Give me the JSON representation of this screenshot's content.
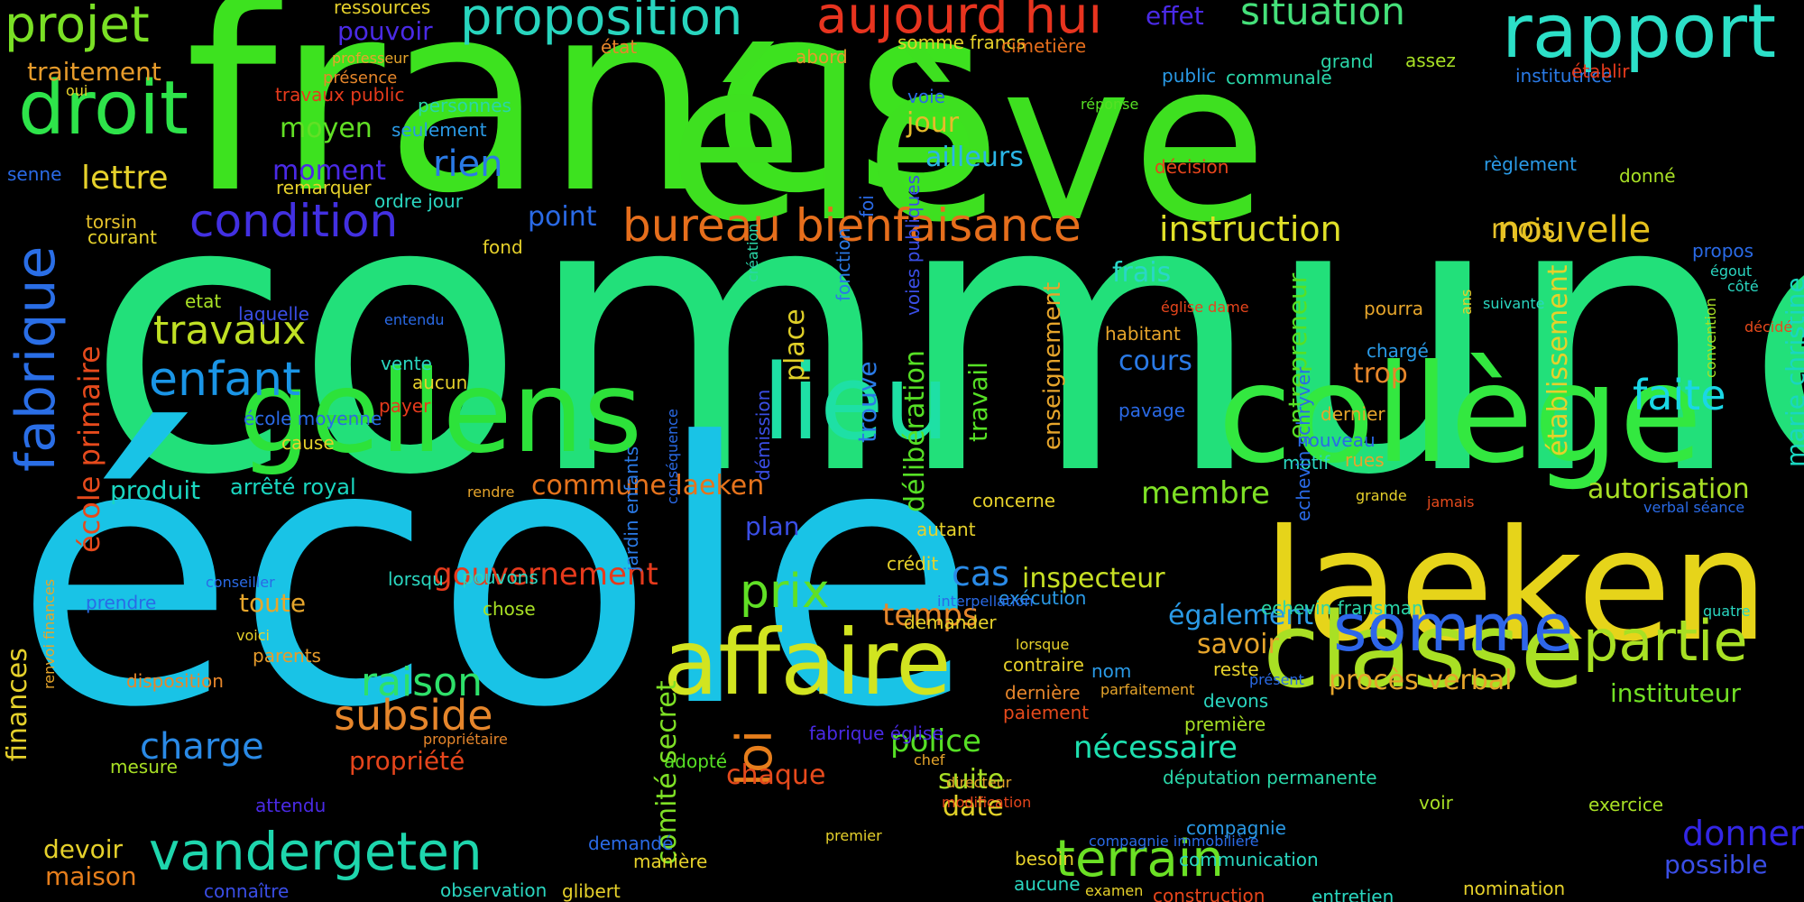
{
  "words": [
    {
      "text": "commune",
      "color": "#22e07a"
    },
    {
      "text": "école",
      "color": "#19c3e6"
    },
    {
      "text": "francs",
      "color": "#3de21f"
    },
    {
      "text": "élève",
      "color": "#3ee020"
    },
    {
      "text": "laeken",
      "color": "#e6d41a"
    },
    {
      "text": "collège",
      "color": "#33e840"
    },
    {
      "text": "gellens",
      "color": "#2de23a"
    },
    {
      "text": "lieu",
      "color": "#1ee0a5"
    },
    {
      "text": "classe",
      "color": "#a9e024"
    },
    {
      "text": "affaire",
      "color": "#d1e420"
    },
    {
      "text": "rapport",
      "color": "#2ce0c8"
    },
    {
      "text": "droit",
      "color": "#2ee44a"
    },
    {
      "text": "projet",
      "color": "#7ae025"
    },
    {
      "text": "proposition",
      "color": "#28d5be"
    },
    {
      "text": "aujourd hui",
      "color": "#e8341f"
    },
    {
      "text": "situation",
      "color": "#45e07a"
    },
    {
      "text": "fabrique",
      "color": "#2a6ee6"
    },
    {
      "text": "somme",
      "color": "#2e66ea"
    },
    {
      "text": "partie",
      "color": "#a8e024"
    },
    {
      "text": "vandergeten",
      "color": "#1ed6ad"
    },
    {
      "text": "terrain",
      "color": "#6be025"
    },
    {
      "text": "bureau bienfaisance",
      "color": "#e66e1c"
    },
    {
      "text": "condition",
      "color": "#4230e2"
    },
    {
      "text": "instruction",
      "color": "#e0e028"
    },
    {
      "text": "enfant",
      "color": "#1a95e6"
    },
    {
      "text": "travaux",
      "color": "#c0e024"
    },
    {
      "text": "prix",
      "color": "#60e025"
    },
    {
      "text": "faite",
      "color": "#1ad6e6"
    },
    {
      "text": "nouvelle",
      "color": "#e6c11c"
    },
    {
      "text": "loi",
      "color": "#e67e1c"
    },
    {
      "text": "raison",
      "color": "#2ee06a"
    },
    {
      "text": "subside",
      "color": "#e6862b"
    },
    {
      "text": "charge",
      "color": "#2a8ae6"
    },
    {
      "text": "membre",
      "color": "#7ee025"
    },
    {
      "text": "nécessaire",
      "color": "#1ee0b0"
    },
    {
      "text": "donner",
      "color": "#3326e6"
    },
    {
      "text": "lettre",
      "color": "#e6d12b"
    },
    {
      "text": "traitement",
      "color": "#e69b2b"
    },
    {
      "text": "moyen",
      "color": "#62e025"
    },
    {
      "text": "moment",
      "color": "#4a2ae6"
    },
    {
      "text": "rien",
      "color": "#2a7ae6"
    },
    {
      "text": "ailleurs",
      "color": "#2ab6e6"
    },
    {
      "text": "jour",
      "color": "#e6bb2b"
    },
    {
      "text": "pouvoir",
      "color": "#4a2ae6"
    },
    {
      "text": "effet",
      "color": "#4a2ae6"
    },
    {
      "text": "point",
      "color": "#2a6ae6"
    },
    {
      "text": "frais",
      "color": "#2ad6c8"
    },
    {
      "text": "cours",
      "color": "#2a7ae6"
    },
    {
      "text": "trop",
      "color": "#e6862b"
    },
    {
      "text": "mois",
      "color": "#e6c12b"
    },
    {
      "text": "procès verbal",
      "color": "#e6a52b"
    },
    {
      "text": "instituteur",
      "color": "#72e025"
    },
    {
      "text": "autorisation",
      "color": "#a8e025"
    },
    {
      "text": "gouvernement",
      "color": "#e63a1c"
    },
    {
      "text": "cas",
      "color": "#2a8ae6"
    },
    {
      "text": "inspecteur",
      "color": "#c8e024"
    },
    {
      "text": "temps",
      "color": "#e6862b"
    },
    {
      "text": "savoir",
      "color": "#e6a52b"
    },
    {
      "text": "également",
      "color": "#2a9ae6"
    },
    {
      "text": "police",
      "color": "#56e025"
    },
    {
      "text": "suite",
      "color": "#a8e025"
    },
    {
      "text": "date",
      "color": "#e0d028"
    },
    {
      "text": "propriété",
      "color": "#e6451c"
    },
    {
      "text": "chaque",
      "color": "#e64a1c"
    },
    {
      "text": "devoir",
      "color": "#e6d12b"
    },
    {
      "text": "maison",
      "color": "#e67e1c"
    },
    {
      "text": "possible",
      "color": "#3a4ee6"
    },
    {
      "text": "produit",
      "color": "#1ad6c0"
    },
    {
      "text": "plan",
      "color": "#3a4ee6"
    },
    {
      "text": "toute",
      "color": "#e6a52b"
    },
    {
      "text": "commune laeken",
      "color": "#e6731c"
    },
    {
      "text": "arrêté royal",
      "color": "#1ad6c0"
    },
    {
      "text": "établissement",
      "color": "#e6d12b"
    },
    {
      "text": "enseignement",
      "color": "#e6a52b"
    },
    {
      "text": "travail",
      "color": "#56e025"
    },
    {
      "text": "entrepreneur",
      "color": "#56e025"
    },
    {
      "text": "délibération",
      "color": "#56e025"
    },
    {
      "text": "trouve",
      "color": "#2a7ae6"
    },
    {
      "text": "place",
      "color": "#e0d028"
    },
    {
      "text": "comité secret",
      "color": "#7ee025"
    },
    {
      "text": "école primaire",
      "color": "#e64a1c"
    },
    {
      "text": "marie christine",
      "color": "#1ad6c0"
    },
    {
      "text": "finances",
      "color": "#e6d12b"
    },
    {
      "text": "ressources",
      "color": "#e6d12b"
    },
    {
      "text": "somme francs",
      "color": "#e6d12b"
    },
    {
      "text": "cimetière",
      "color": "#e66e1c"
    },
    {
      "text": "état",
      "color": "#e6862b"
    },
    {
      "text": "abord",
      "color": "#e69b2b"
    },
    {
      "text": "professeur",
      "color": "#e6a52b"
    },
    {
      "text": "oui",
      "color": "#e6d12b"
    },
    {
      "text": "présence",
      "color": "#e6862b"
    },
    {
      "text": "travaux public",
      "color": "#e63a1c"
    },
    {
      "text": "personnes",
      "color": "#2ad6a8"
    },
    {
      "text": "seulement",
      "color": "#2a9ae6"
    },
    {
      "text": "voie",
      "color": "#2a6ae6"
    },
    {
      "text": "public",
      "color": "#2a9ae6"
    },
    {
      "text": "communale",
      "color": "#2ad6a8"
    },
    {
      "text": "grand",
      "color": "#2ad6a8"
    },
    {
      "text": "assez",
      "color": "#a8e025"
    },
    {
      "text": "institutrice",
      "color": "#2a7ae6"
    },
    {
      "text": "établir",
      "color": "#e63a1c"
    },
    {
      "text": "réponse",
      "color": "#56e025"
    },
    {
      "text": "décision",
      "color": "#e6451c"
    },
    {
      "text": "règlement",
      "color": "#2a9ae6"
    },
    {
      "text": "donné",
      "color": "#a8e025"
    },
    {
      "text": "remarquer",
      "color": "#e6d12b"
    },
    {
      "text": "ordre jour",
      "color": "#2ad6c0"
    },
    {
      "text": "senne",
      "color": "#2a6ae6"
    },
    {
      "text": "torsin",
      "color": "#e6c12b"
    },
    {
      "text": "courant",
      "color": "#e6d12b"
    },
    {
      "text": "fond",
      "color": "#e6d12b"
    },
    {
      "text": "etat",
      "color": "#a8e025"
    },
    {
      "text": "laquelle",
      "color": "#3a4ee6"
    },
    {
      "text": "entendu",
      "color": "#2a6ae6"
    },
    {
      "text": "église dame",
      "color": "#e6451c"
    },
    {
      "text": "habitant",
      "color": "#e6a52b"
    },
    {
      "text": "pourra",
      "color": "#e6a52b"
    },
    {
      "text": "suivante",
      "color": "#2ad6c0"
    },
    {
      "text": "chargé",
      "color": "#2a9ae6"
    },
    {
      "text": "propos",
      "color": "#2a6ae6"
    },
    {
      "text": "égout",
      "color": "#2ad6c0"
    },
    {
      "text": "côté",
      "color": "#2ad6c0"
    },
    {
      "text": "décidé",
      "color": "#e64a1c"
    },
    {
      "text": "convention",
      "color": "#a8e025"
    },
    {
      "text": "ans",
      "color": "#e6d12b"
    },
    {
      "text": "vente",
      "color": "#2ad6c0"
    },
    {
      "text": "aucun",
      "color": "#e6d12b"
    },
    {
      "text": "payer",
      "color": "#e63a1c"
    },
    {
      "text": "école moyenne",
      "color": "#2a6ae6"
    },
    {
      "text": "cause",
      "color": "#e6d12b"
    },
    {
      "text": "pavage",
      "color": "#2a6ae6"
    },
    {
      "text": "dernier",
      "color": "#e6a52b"
    },
    {
      "text": "nouveau",
      "color": "#2a6ae6"
    },
    {
      "text": "motif",
      "color": "#2ad6c0"
    },
    {
      "text": "rues",
      "color": "#e6a52b"
    },
    {
      "text": "grande",
      "color": "#e6d12b"
    },
    {
      "text": "verbal séance",
      "color": "#2a6ae6"
    },
    {
      "text": "jamais",
      "color": "#e64a1c"
    },
    {
      "text": "quatre",
      "color": "#2ad6c0"
    },
    {
      "text": "echevin fransman",
      "color": "#2ad6a8"
    },
    {
      "text": "echevin schryver",
      "color": "#2a6ae6"
    },
    {
      "text": "rendre",
      "color": "#e6a52b"
    },
    {
      "text": "concerne",
      "color": "#e6d12b"
    },
    {
      "text": "autant",
      "color": "#e6d12b"
    },
    {
      "text": "crédit",
      "color": "#e6d12b"
    },
    {
      "text": "exécution",
      "color": "#2a9ae6"
    },
    {
      "text": "interpellation",
      "color": "#2a6ae6"
    },
    {
      "text": "demander",
      "color": "#e6d12b"
    },
    {
      "text": "chose",
      "color": "#a8e025"
    },
    {
      "text": "pouvons",
      "color": "#2ad6c0"
    },
    {
      "text": "lorsqu",
      "color": "#2ad6c0"
    },
    {
      "text": "conseiller",
      "color": "#2a6ae6"
    },
    {
      "text": "prendre",
      "color": "#2a6ae6"
    },
    {
      "text": "voici",
      "color": "#e6d12b"
    },
    {
      "text": "parents",
      "color": "#e69b2b"
    },
    {
      "text": "disposition",
      "color": "#e6862b"
    },
    {
      "text": "mesure",
      "color": "#a8e025"
    },
    {
      "text": "attendu",
      "color": "#4a2ae6"
    },
    {
      "text": "connaître",
      "color": "#3a4ee6"
    },
    {
      "text": "observation",
      "color": "#2ad6c0"
    },
    {
      "text": "glibert",
      "color": "#e6d12b"
    },
    {
      "text": "manière",
      "color": "#e6d12b"
    },
    {
      "text": "demandé",
      "color": "#2a6ae6"
    },
    {
      "text": "adopté",
      "color": "#56e025"
    },
    {
      "text": "fabrique église",
      "color": "#4a2ae6"
    },
    {
      "text": "propriétaire",
      "color": "#e6862b"
    },
    {
      "text": "lorsque",
      "color": "#e6d12b"
    },
    {
      "text": "contraire",
      "color": "#e6d12b"
    },
    {
      "text": "dernière",
      "color": "#e6862b"
    },
    {
      "text": "paiement",
      "color": "#e64a1c"
    },
    {
      "text": "directeur",
      "color": "#e6a52b"
    },
    {
      "text": "chef",
      "color": "#e6a52b"
    },
    {
      "text": "modification",
      "color": "#e6451c"
    },
    {
      "text": "premier",
      "color": "#e6d12b"
    },
    {
      "text": "besoin",
      "color": "#e6d12b"
    },
    {
      "text": "aucune",
      "color": "#2ad6c0"
    },
    {
      "text": "nom",
      "color": "#2a9ae6"
    },
    {
      "text": "parfaitement",
      "color": "#e6a52b"
    },
    {
      "text": "compagnie immobilière",
      "color": "#2a6ae6"
    },
    {
      "text": "examen",
      "color": "#e6d12b"
    },
    {
      "text": "compagnie",
      "color": "#2a9ae6"
    },
    {
      "text": "communication",
      "color": "#2ad6c0"
    },
    {
      "text": "construction",
      "color": "#e6451c"
    },
    {
      "text": "entretien",
      "color": "#2ad6c0"
    },
    {
      "text": "nomination",
      "color": "#e6d12b"
    },
    {
      "text": "députation permanente",
      "color": "#2ad6a8"
    },
    {
      "text": "voir",
      "color": "#a8e025"
    },
    {
      "text": "exercice",
      "color": "#a8e025"
    },
    {
      "text": "première",
      "color": "#a8e025"
    },
    {
      "text": "devons",
      "color": "#2ad6c0"
    },
    {
      "text": "reste",
      "color": "#e6d12b"
    },
    {
      "text": "présent",
      "color": "#2a6ae6"
    },
    {
      "text": "renvoi finances",
      "color": "#e6a52b"
    },
    {
      "text": "jardin enfants",
      "color": "#2a7ae6"
    },
    {
      "text": "démission",
      "color": "#3a4ee6"
    },
    {
      "text": "conséquence",
      "color": "#2a6ae6"
    },
    {
      "text": "fonction",
      "color": "#2a7ae6"
    },
    {
      "text": "foi",
      "color": "#2a6ae6"
    },
    {
      "text": "voies publiques",
      "color": "#3a4ee6"
    },
    {
      "text": "création",
      "color": "#2ad6a8"
    }
  ]
}
